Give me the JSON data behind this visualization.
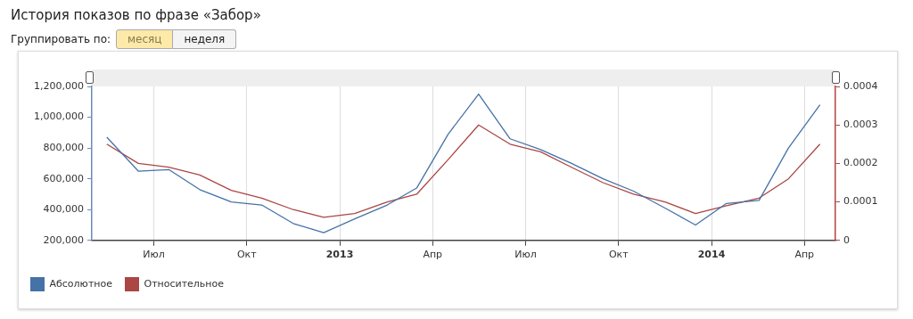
{
  "chart_data": {
    "type": "line",
    "title": "История показов по фразе «Забор»",
    "annotations": [
      "Группировать по:",
      "месяц",
      "неделя"
    ],
    "x": [
      "2012-05-16",
      "2012-06-16",
      "2012-07-16",
      "2012-08-16",
      "2012-09-16",
      "2012-10-16",
      "2012-11-16",
      "2012-12-16",
      "2013-01-16",
      "2013-02-16",
      "2013-03-16",
      "2013-04-16",
      "2013-05-16",
      "2013-06-16",
      "2013-07-16",
      "2013-08-16",
      "2013-09-16",
      "2013-10-16",
      "2013-11-16",
      "2013-12-16",
      "2014-01-16",
      "2014-02-16",
      "2014-03-16",
      "2014-04-16"
    ],
    "series": [
      {
        "name": "Абсолютное",
        "color": "#4572a7",
        "values": [
          870000,
          650000,
          660000,
          530000,
          450000,
          430000,
          310000,
          250000,
          340000,
          430000,
          540000,
          890000,
          1150000,
          860000,
          790000,
          700000,
          600000,
          520000,
          410000,
          300000,
          440000,
          460000,
          800000,
          1080000
        ]
      },
      {
        "name": "Относительное",
        "color": "#aa4643",
        "axis": "y2",
        "values": [
          0.00025,
          0.0002,
          0.00019,
          0.00017,
          0.00013,
          0.00011,
          8e-05,
          6e-05,
          7e-05,
          0.0001,
          0.00012,
          0.00021,
          0.0003,
          0.00025,
          0.00023,
          0.00019,
          0.00015,
          0.00012,
          0.0001,
          7e-05,
          9e-05,
          0.00011,
          0.00016,
          0.00025
        ]
      }
    ],
    "xlim": [
      "2012-05-01",
      "2014-05-01"
    ],
    "xticks": [
      {
        "value": "2012-07-01",
        "label": "Июл"
      },
      {
        "value": "2012-10-01",
        "label": "Окт"
      },
      {
        "value": "2013-01-01",
        "label": "2013"
      },
      {
        "value": "2013-04-01",
        "label": "Апр"
      },
      {
        "value": "2013-07-01",
        "label": "Июл"
      },
      {
        "value": "2013-10-01",
        "label": "Окт"
      },
      {
        "value": "2014-01-01",
        "label": "2014"
      },
      {
        "value": "2014-04-01",
        "label": "Апр"
      }
    ],
    "ylim": [
      200000,
      1200000
    ],
    "yticks": [
      {
        "value": 200000,
        "label": "200,000"
      },
      {
        "value": 400000,
        "label": "400,000"
      },
      {
        "value": 600000,
        "label": "600,000"
      },
      {
        "value": 800000,
        "label": "800,000"
      },
      {
        "value": 1000000,
        "label": "1,000,000"
      },
      {
        "value": 1200000,
        "label": "1,200,000"
      }
    ],
    "y2lim": [
      0,
      0.0004
    ],
    "y2ticks": [
      0,
      0.0001,
      0.0002,
      0.0003,
      0.0004
    ],
    "grid": "x",
    "legend": "bottom left",
    "marker": "none",
    "line_style": "solid"
  }
}
